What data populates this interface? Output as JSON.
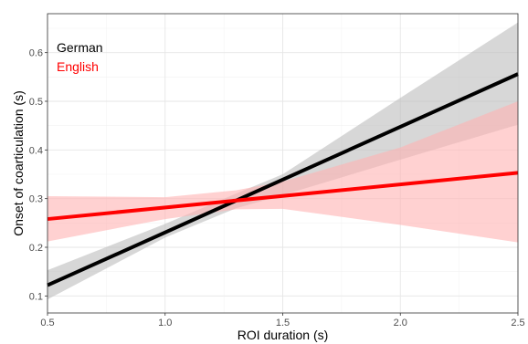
{
  "chart_data": {
    "type": "line",
    "xlabel": "ROI duration (s)",
    "ylabel": "Onset of coarticulation (s)",
    "xlim": [
      0.5,
      2.5
    ],
    "ylim": [
      0.065,
      0.68
    ],
    "x_ticks": [
      0.5,
      1.0,
      1.5,
      2.0,
      2.5
    ],
    "x_tick_labels": [
      "0.5",
      "1.0",
      "1.5",
      "2.0",
      "2.5"
    ],
    "y_ticks": [
      0.1,
      0.2,
      0.3,
      0.4,
      0.5,
      0.6
    ],
    "y_tick_labels": [
      "0.1",
      "0.2",
      "0.3",
      "0.4",
      "0.5",
      "0.6"
    ],
    "grid": true,
    "legend_position": "top-left",
    "series": [
      {
        "name": "German",
        "color": "#000000",
        "band_color": "#bdbdbd",
        "x": [
          0.5,
          2.5
        ],
        "y": [
          0.122,
          0.556
        ],
        "ci_x": [
          0.5,
          1.0,
          1.3,
          1.5,
          2.0,
          2.5
        ],
        "ci_lower": [
          0.093,
          0.22,
          0.28,
          0.307,
          0.38,
          0.452
        ],
        "ci_upper": [
          0.153,
          0.248,
          0.31,
          0.35,
          0.507,
          0.662
        ]
      },
      {
        "name": "English",
        "color": "#ff0000",
        "band_color": "#ffb3b3",
        "x": [
          0.5,
          2.5
        ],
        "y": [
          0.258,
          0.353
        ],
        "ci_x": [
          0.5,
          1.0,
          1.3,
          1.5,
          2.0,
          2.5
        ],
        "ci_lower": [
          0.212,
          0.258,
          0.278,
          0.279,
          0.246,
          0.21
        ],
        "ci_upper": [
          0.305,
          0.303,
          0.317,
          0.335,
          0.405,
          0.5
        ]
      }
    ]
  }
}
